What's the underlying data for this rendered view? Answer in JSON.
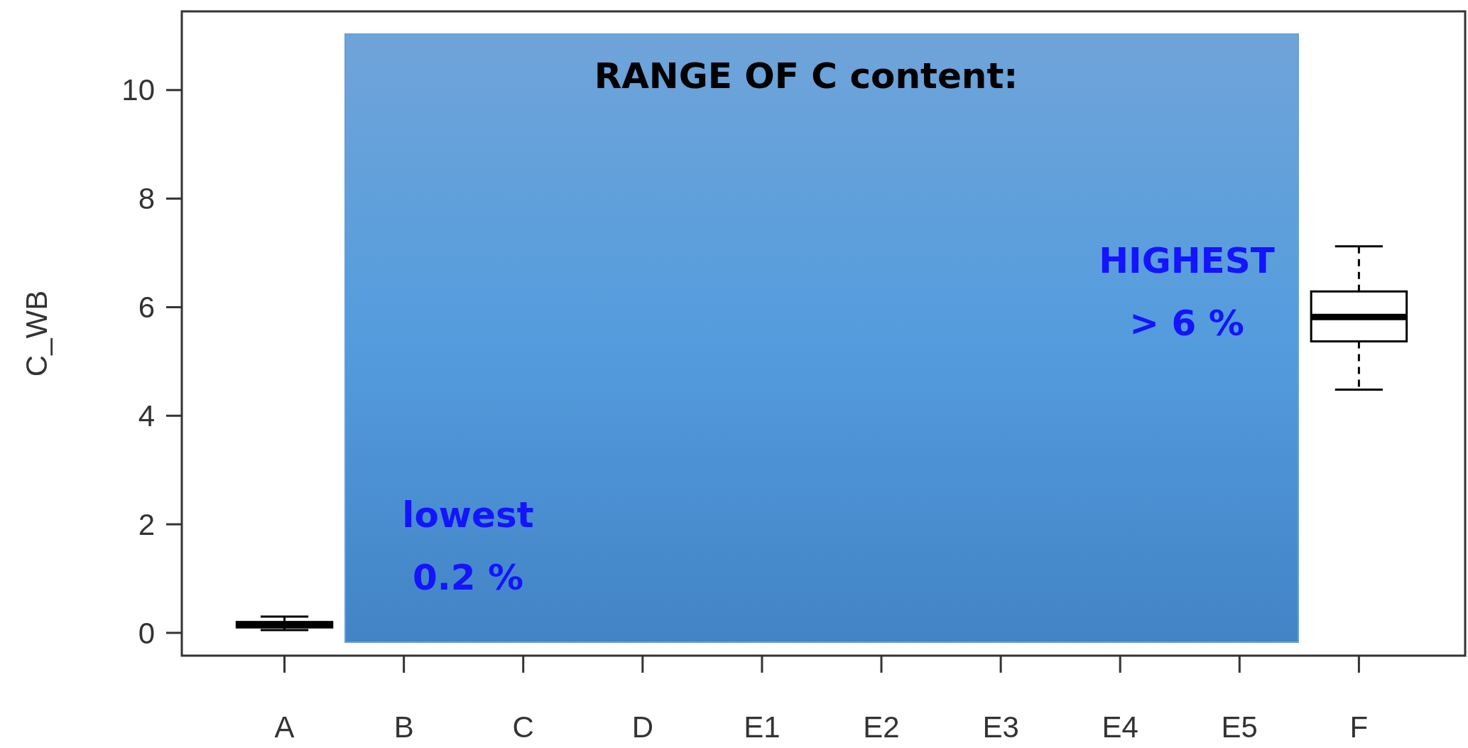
{
  "chart_data": {
    "type": "box",
    "ylabel": "C_WB",
    "categories": [
      "A",
      "B",
      "C",
      "D",
      "E1",
      "E2",
      "E3",
      "E4",
      "E5",
      "F"
    ],
    "boxes": [
      {
        "low": 0.05,
        "q1": 0.1,
        "median": 0.15,
        "q3": 0.2,
        "high": 0.3
      },
      null,
      null,
      null,
      null,
      null,
      null,
      null,
      null,
      {
        "low": 4.48,
        "q1": 5.37,
        "median": 5.82,
        "q3": 6.29,
        "high": 7.12
      }
    ],
    "ylim": [
      -0.42,
      11.45
    ],
    "yticks": [
      0,
      2,
      4,
      6,
      8,
      10
    ],
    "annotations": [
      "RANGE OF C content:",
      "lowest\n0.2 %",
      "HIGHEST\n> 6 %"
    ]
  }
}
